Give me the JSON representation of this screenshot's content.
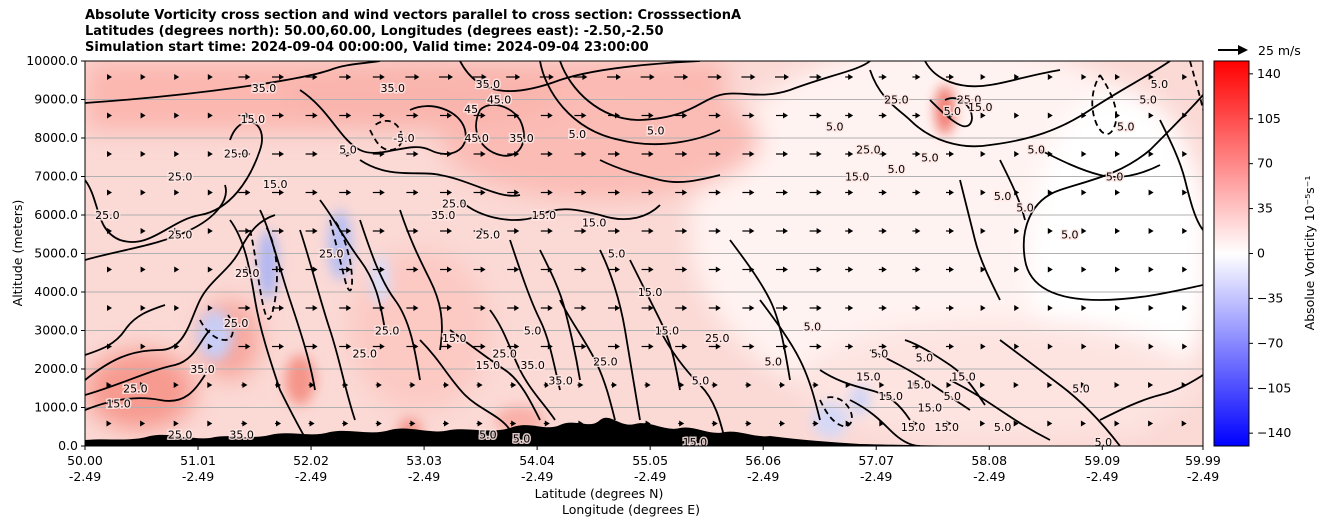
{
  "chart_data": {
    "type": "contour",
    "title_lines": [
      "Absolute Vorticity cross section and wind vectors parallel to cross section: CrosssectionA",
      "Latitudes (degrees north): 50.00,60.00, Longitudes (degrees east): -2.50,-2.50",
      "Simulation start time: 2024-09-04 00:00:00, Valid time: 2024-09-04 23:00:00"
    ],
    "ylabel": "Altitude (meters)",
    "xlabel_lines": [
      "Latitude (degrees N)",
      "Longitude (degrees E)"
    ],
    "yticks": [
      "0.0",
      "1000.0",
      "2000.0",
      "3000.0",
      "4000.0",
      "5000.0",
      "6000.0",
      "7000.0",
      "8000.0",
      "9000.0",
      "10000.0"
    ],
    "ylim": [
      0,
      10000
    ],
    "xticks_lat": [
      "50.00",
      "51.01",
      "52.02",
      "53.03",
      "54.04",
      "55.05",
      "56.06",
      "57.07",
      "58.08",
      "59.09",
      "59.99"
    ],
    "xticks_lon": [
      "-2.49",
      "-2.49",
      "-2.49",
      "-2.49",
      "-2.49",
      "-2.49",
      "-2.49",
      "-2.49",
      "-2.49",
      "-2.49",
      "-2.49"
    ],
    "xlim": [
      50.0,
      59.99
    ],
    "grid": "horizontal",
    "quiver_key": "25 m/s",
    "colorbar": {
      "label": "Absolue Vorticity 10⁻⁵s⁻¹",
      "ticks": [
        "140",
        "105",
        "70",
        "35",
        "0",
        "−35",
        "−70",
        "−105",
        "−140"
      ],
      "range": [
        -150,
        150
      ],
      "colormap": "bwr"
    },
    "contour_labels": [
      {
        "text": "35.0",
        "lat": 51.6,
        "alt": 9300
      },
      {
        "text": "35.0",
        "lat": 52.75,
        "alt": 9300
      },
      {
        "text": "35.0",
        "lat": 53.6,
        "alt": 9400
      },
      {
        "text": "45.0",
        "lat": 53.7,
        "alt": 9000
      },
      {
        "text": "45",
        "lat": 53.45,
        "alt": 8750
      },
      {
        "text": "45.0",
        "lat": 53.5,
        "alt": 8000
      },
      {
        "text": "35.0",
        "lat": 53.9,
        "alt": 8000
      },
      {
        "text": "15.0",
        "lat": 51.5,
        "alt": 8500
      },
      {
        "text": "5.0",
        "lat": 52.35,
        "alt": 7700
      },
      {
        "text": "-5.0",
        "lat": 52.85,
        "alt": 8000
      },
      {
        "text": "25.0",
        "lat": 51.35,
        "alt": 7600
      },
      {
        "text": "25.0",
        "lat": 50.85,
        "alt": 7000
      },
      {
        "text": "25.0",
        "lat": 50.2,
        "alt": 6000
      },
      {
        "text": "25.0",
        "lat": 50.85,
        "alt": 5500
      },
      {
        "text": "15.0",
        "lat": 51.7,
        "alt": 6800
      },
      {
        "text": "35.0",
        "lat": 53.2,
        "alt": 6000
      },
      {
        "text": "25.0",
        "lat": 53.3,
        "alt": 6300
      },
      {
        "text": "15.0",
        "lat": 54.1,
        "alt": 6000
      },
      {
        "text": "15.0",
        "lat": 54.55,
        "alt": 5800
      },
      {
        "text": "25.0",
        "lat": 53.6,
        "alt": 5500
      },
      {
        "text": "25.0",
        "lat": 51.45,
        "alt": 4500
      },
      {
        "text": "25.0",
        "lat": 52.2,
        "alt": 5000
      },
      {
        "text": "5.0",
        "lat": 54.75,
        "alt": 5000
      },
      {
        "text": "15.0",
        "lat": 55.05,
        "alt": 4000
      },
      {
        "text": "15.0",
        "lat": 55.2,
        "alt": 3000
      },
      {
        "text": "25.0",
        "lat": 51.35,
        "alt": 3200
      },
      {
        "text": "25.0",
        "lat": 52.5,
        "alt": 2400
      },
      {
        "text": "25.0",
        "lat": 52.7,
        "alt": 3000
      },
      {
        "text": "15.0",
        "lat": 53.3,
        "alt": 2800
      },
      {
        "text": "5.0",
        "lat": 54.0,
        "alt": 3000
      },
      {
        "text": "15.0",
        "lat": 53.6,
        "alt": 2100
      },
      {
        "text": "25.0",
        "lat": 53.75,
        "alt": 2400
      },
      {
        "text": "35.0",
        "lat": 54.0,
        "alt": 2100
      },
      {
        "text": "25.0",
        "lat": 54.65,
        "alt": 2200
      },
      {
        "text": "35.0",
        "lat": 54.25,
        "alt": 1700
      },
      {
        "text": "25.0",
        "lat": 50.45,
        "alt": 1500
      },
      {
        "text": "35.0",
        "lat": 51.05,
        "alt": 2000
      },
      {
        "text": "15.0",
        "lat": 50.3,
        "alt": 1100
      },
      {
        "text": "5.0",
        "lat": 56.5,
        "alt": 3100
      },
      {
        "text": "15.0",
        "lat": 57.0,
        "alt": 1800
      },
      {
        "text": "5.0",
        "lat": 57.1,
        "alt": 2400
      },
      {
        "text": "5.0",
        "lat": 57.5,
        "alt": 2300
      },
      {
        "text": "15.0",
        "lat": 57.45,
        "alt": 1600
      },
      {
        "text": "15.0",
        "lat": 57.2,
        "alt": 1300
      },
      {
        "text": "15.0",
        "lat": 57.55,
        "alt": 1000
      },
      {
        "text": "15.0",
        "lat": 57.4,
        "alt": 500
      },
      {
        "text": "15.0",
        "lat": 57.7,
        "alt": 500
      },
      {
        "text": "15.0",
        "lat": 57.85,
        "alt": 1800
      },
      {
        "text": "5.0",
        "lat": 57.75,
        "alt": 1300
      },
      {
        "text": "5.0",
        "lat": 58.2,
        "alt": 500
      },
      {
        "text": "5.0",
        "lat": 58.9,
        "alt": 1500
      },
      {
        "text": "5.0",
        "lat": 59.1,
        "alt": 100
      },
      {
        "text": "5.0",
        "lat": 58.5,
        "alt": 7700
      },
      {
        "text": "5.0",
        "lat": 58.2,
        "alt": 6500
      },
      {
        "text": "5.0",
        "lat": 58.4,
        "alt": 6200
      },
      {
        "text": "5.0",
        "lat": 58.8,
        "alt": 5500
      },
      {
        "text": "5.0",
        "lat": 59.2,
        "alt": 7000
      },
      {
        "text": "5.0",
        "lat": 59.3,
        "alt": 8300
      },
      {
        "text": "5.0",
        "lat": 59.5,
        "alt": 9000
      },
      {
        "text": "5.0",
        "lat": 59.6,
        "alt": 9400
      },
      {
        "text": "5.0",
        "lat": 57.75,
        "alt": 8700
      },
      {
        "text": "5.0",
        "lat": 57.55,
        "alt": 7500
      },
      {
        "text": "5.0",
        "lat": 57.25,
        "alt": 7200
      },
      {
        "text": "25.0",
        "lat": 57.9,
        "alt": 9000
      },
      {
        "text": "15.0",
        "lat": 58.0,
        "alt": 8800
      },
      {
        "text": "25.0",
        "lat": 57.25,
        "alt": 9000
      },
      {
        "text": "25.0",
        "lat": 57.0,
        "alt": 7700
      },
      {
        "text": "15.0",
        "lat": 56.9,
        "alt": 7000
      },
      {
        "text": "5.0",
        "lat": 56.7,
        "alt": 8300
      },
      {
        "text": "5.0",
        "lat": 55.1,
        "alt": 8200
      },
      {
        "text": "5.0",
        "lat": 54.4,
        "alt": 8100
      },
      {
        "text": "25.0",
        "lat": 55.65,
        "alt": 2800
      },
      {
        "text": "5.0",
        "lat": 56.15,
        "alt": 2200
      },
      {
        "text": "5.0",
        "lat": 55.5,
        "alt": 1700
      },
      {
        "text": "15.0",
        "lat": 55.45,
        "alt": 100
      },
      {
        "text": "35.0",
        "lat": 51.4,
        "alt": 300
      },
      {
        "text": "25.0",
        "lat": 50.85,
        "alt": 300
      },
      {
        "text": "5.0",
        "lat": 53.6,
        "alt": 300
      },
      {
        "text": "5.0",
        "lat": 53.9,
        "alt": 200
      }
    ]
  }
}
